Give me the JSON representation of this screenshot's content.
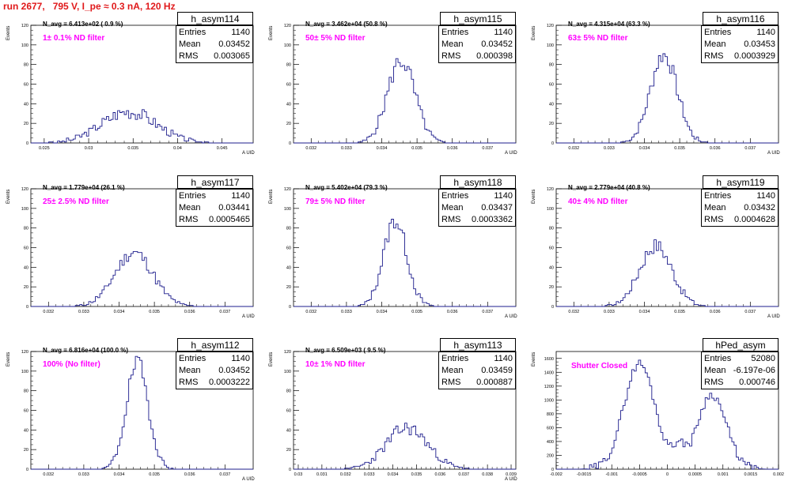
{
  "run_title": "run 2677,   795 V, I_pe ≈ 0.3 nA, 120 Hz",
  "colors": {
    "title": "#e0191b",
    "filter_label": "#ff00ff",
    "histogram_line": "#1c1c8c",
    "axis": "#000000"
  },
  "stats_labels": {
    "entries": "Entries",
    "mean": "Mean",
    "rms": "RMS"
  },
  "chart_data": [
    {
      "type": "histogram",
      "name": "h_asym114",
      "entries": "1140",
      "mean": "0.03452",
      "rms": "0.003065",
      "n_avg": "N_avg = 6.413e+02 ( 0.9 %)",
      "filter": "1± 0.1% ND filter",
      "ylabel": "Events",
      "xlabel": "A_UID",
      "xlim": [
        0.0235,
        0.0485
      ],
      "ylim": [
        0,
        120
      ],
      "xticks": [
        "0.025",
        "0.03",
        "0.035",
        "0.04",
        "0.045"
      ],
      "yticks": [
        "0",
        "20",
        "40",
        "60",
        "80",
        "100",
        "120"
      ],
      "dist": {
        "kind": "gauss",
        "center": 0.0345,
        "sigma": 0.0031,
        "peak": 32,
        "noise": 7,
        "seed": 3
      }
    },
    {
      "type": "histogram",
      "name": "h_asym115",
      "entries": "1140",
      "mean": "0.03452",
      "rms": "0.000398",
      "n_avg": "N_avg = 3.462e+04 (50.8 %)",
      "filter": "50± 5% ND filter",
      "ylabel": "Events",
      "xlabel": "A_UID",
      "xlim": [
        0.0315,
        0.0378
      ],
      "ylim": [
        0,
        120
      ],
      "xticks": [
        "0.032",
        "0.033",
        "0.034",
        "0.035",
        "0.036",
        "0.037"
      ],
      "yticks": [
        "0",
        "20",
        "40",
        "60",
        "80",
        "100",
        "120"
      ],
      "dist": {
        "kind": "gauss",
        "center": 0.03455,
        "sigma": 0.00039,
        "peak": 84,
        "noise": 10,
        "seed": 5
      }
    },
    {
      "type": "histogram",
      "name": "h_asym116",
      "entries": "1140",
      "mean": "0.03453",
      "rms": "0.0003929",
      "n_avg": "N_avg = 4.315e+04 (63.3 %)",
      "filter": "63± 5% ND filter",
      "ylabel": "Events",
      "xlabel": "A_UID",
      "xlim": [
        0.0315,
        0.0378
      ],
      "ylim": [
        0,
        120
      ],
      "xticks": [
        "0.032",
        "0.033",
        "0.034",
        "0.035",
        "0.036",
        "0.037"
      ],
      "yticks": [
        "0",
        "20",
        "40",
        "60",
        "80",
        "100",
        "120"
      ],
      "dist": {
        "kind": "gauss",
        "center": 0.03455,
        "sigma": 0.00038,
        "peak": 90,
        "noise": 9,
        "seed": 7
      }
    },
    {
      "type": "histogram",
      "name": "h_asym117",
      "entries": "1140",
      "mean": "0.03441",
      "rms": "0.0005465",
      "n_avg": "N_avg = 1.779e+04 (26.1 %)",
      "filter": "25± 2.5% ND filter",
      "ylabel": "Events",
      "xlabel": "A_UID",
      "xlim": [
        0.0315,
        0.0378
      ],
      "ylim": [
        0,
        120
      ],
      "xticks": [
        "0.032",
        "0.033",
        "0.034",
        "0.035",
        "0.036",
        "0.037"
      ],
      "yticks": [
        "0",
        "20",
        "40",
        "60",
        "80",
        "100",
        "120"
      ],
      "dist": {
        "kind": "gauss",
        "center": 0.03442,
        "sigma": 0.00054,
        "peak": 55,
        "noise": 7,
        "seed": 11
      }
    },
    {
      "type": "histogram",
      "name": "h_asym118",
      "entries": "1140",
      "mean": "0.03437",
      "rms": "0.0003362",
      "n_avg": "N_avg = 5.402e+04 (79.3 %)",
      "filter": "79± 5% ND filter",
      "ylabel": "Events",
      "xlabel": "A_UID",
      "xlim": [
        0.0315,
        0.0378
      ],
      "ylim": [
        0,
        120
      ],
      "xticks": [
        "0.032",
        "0.033",
        "0.034",
        "0.035",
        "0.036",
        "0.037"
      ],
      "yticks": [
        "0",
        "20",
        "40",
        "60",
        "80",
        "100",
        "120"
      ],
      "dist": {
        "kind": "gauss",
        "center": 0.03438,
        "sigma": 0.00033,
        "peak": 88,
        "noise": 9,
        "seed": 13
      }
    },
    {
      "type": "histogram",
      "name": "h_asym119",
      "entries": "1140",
      "mean": "0.03432",
      "rms": "0.0004628",
      "n_avg": "N_avg = 2.779e+04 (40.8 %)",
      "filter": "40± 4% ND filter",
      "ylabel": "Events",
      "xlabel": "A_UID",
      "xlim": [
        0.0315,
        0.0378
      ],
      "ylim": [
        0,
        120
      ],
      "xticks": [
        "0.032",
        "0.033",
        "0.034",
        "0.035",
        "0.036",
        "0.037"
      ],
      "yticks": [
        "0",
        "20",
        "40",
        "60",
        "80",
        "100",
        "120"
      ],
      "dist": {
        "kind": "gauss",
        "center": 0.03432,
        "sigma": 0.00046,
        "peak": 62,
        "noise": 8,
        "seed": 17
      }
    },
    {
      "type": "histogram",
      "name": "h_asym112",
      "entries": "1140",
      "mean": "0.03452",
      "rms": "0.0003222",
      "n_avg": "N_avg = 6.816e+04 (100.0 %)",
      "filter": "100% (No filter)",
      "ylabel": "Events",
      "xlabel": "A_UID",
      "xlim": [
        0.0315,
        0.0378
      ],
      "ylim": [
        0,
        120
      ],
      "xticks": [
        "0.032",
        "0.033",
        "0.034",
        "0.035",
        "0.036",
        "0.037"
      ],
      "yticks": [
        "0",
        "20",
        "40",
        "60",
        "80",
        "100",
        "120"
      ],
      "dist": {
        "kind": "gauss",
        "center": 0.03452,
        "sigma": 0.00031,
        "peak": 108,
        "noise": 9,
        "seed": 19
      }
    },
    {
      "type": "histogram",
      "name": "h_asym113",
      "entries": "1140",
      "mean": "0.03459",
      "rms": "0.000887",
      "n_avg": "N_avg = 6.509e+03 ( 9.5 %)",
      "filter": "10± 1% ND filter",
      "ylabel": "Events",
      "xlabel": "A_UID",
      "xlim": [
        0.0298,
        0.0392
      ],
      "ylim": [
        0,
        120
      ],
      "xticks": [
        "0.03",
        "0.031",
        "0.032",
        "0.033",
        "0.034",
        "0.035",
        "0.036",
        "0.037",
        "0.038",
        "0.039"
      ],
      "yticks": [
        "0",
        "20",
        "40",
        "60",
        "80",
        "100",
        "120"
      ],
      "dist": {
        "kind": "gauss",
        "center": 0.0346,
        "sigma": 0.00088,
        "peak": 42,
        "noise": 7,
        "seed": 23
      }
    },
    {
      "type": "histogram",
      "name": "hPed_asym",
      "entries": "52080",
      "mean": "-6.197e-06",
      "rms": "0.000746",
      "n_avg": "",
      "filter": "Shutter Closed",
      "ylabel": "Events",
      "xlabel": "",
      "xlim": [
        -0.002,
        0.002
      ],
      "ylim": [
        0,
        1700
      ],
      "xticks": [
        "-0.002",
        "-0.0015",
        "-0.001",
        "-0.0005",
        "0",
        "0.0005",
        "0.001",
        "0.0015",
        "0.002"
      ],
      "yticks": [
        "0",
        "200",
        "400",
        "600",
        "800",
        "1000",
        "1200",
        "1400",
        "1600"
      ],
      "dist": {
        "kind": "double",
        "c1": -0.0005,
        "s1": 0.00028,
        "p1": 1530,
        "c2": 0.0008,
        "s2": 0.00026,
        "p2": 1080,
        "base": 380,
        "noise": 60,
        "seed": 29
      }
    }
  ]
}
